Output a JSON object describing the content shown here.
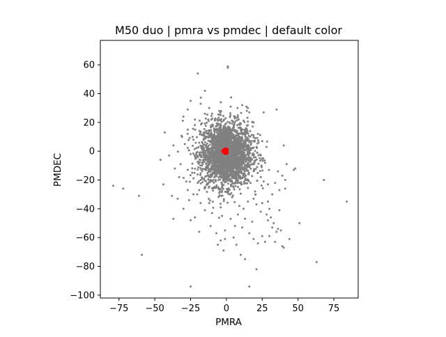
{
  "chart_data": {
    "type": "scatter",
    "title": "M50 duo | pmra vs pmdec | default color",
    "xlabel": "PMRA",
    "ylabel": "PMDEC",
    "xlim": [
      -88,
      92
    ],
    "ylim": [
      -102,
      77
    ],
    "x_ticks": [
      -75,
      -50,
      -25,
      0,
      25,
      50,
      75
    ],
    "y_ticks": [
      -100,
      -80,
      -60,
      -40,
      -20,
      0,
      20,
      40,
      60
    ],
    "grid": false,
    "legend": "none",
    "series": [
      {
        "color": "#808080",
        "marker": "dot",
        "core_cluster": {
          "center": [
            0,
            -2
          ],
          "spread_x": 9,
          "spread_y": 11
        },
        "points": [
          [
            -20,
            54
          ],
          [
            -15,
            42
          ],
          [
            1,
            58
          ],
          [
            1,
            59
          ],
          [
            -25,
            35
          ],
          [
            -18,
            33
          ],
          [
            -12,
            30
          ],
          [
            -27,
            29
          ],
          [
            16,
            27
          ],
          [
            26,
            27
          ],
          [
            35,
            29
          ],
          [
            -30,
            24
          ],
          [
            -22,
            22
          ],
          [
            -8,
            22
          ],
          [
            8,
            25
          ],
          [
            -43,
            13
          ],
          [
            -37,
            4
          ],
          [
            -40,
            -3
          ],
          [
            -46,
            -6
          ],
          [
            -32,
            -9
          ],
          [
            -36,
            -12
          ],
          [
            -27,
            -13
          ],
          [
            -33,
            -18
          ],
          [
            -28,
            -21
          ],
          [
            -44,
            -23
          ],
          [
            -38,
            -31
          ],
          [
            -34,
            -33
          ],
          [
            -26,
            -34
          ],
          [
            -23,
            -30
          ],
          [
            -19,
            -27
          ],
          [
            -25,
            -48
          ],
          [
            -18,
            -36
          ],
          [
            -12,
            -36
          ],
          [
            -37,
            -47
          ],
          [
            -15,
            -41
          ],
          [
            -10,
            -43
          ],
          [
            -3,
            -45
          ],
          [
            3,
            -47
          ],
          [
            8,
            -44
          ],
          [
            13,
            -47
          ],
          [
            9,
            -38
          ],
          [
            -11,
            -52
          ],
          [
            -7,
            -57
          ],
          [
            -1,
            -55
          ],
          [
            6,
            -52
          ],
          [
            11,
            -53
          ],
          [
            -19,
            -56
          ],
          [
            -22,
            -46
          ],
          [
            -27,
            -27
          ],
          [
            -5,
            -29
          ],
          [
            4,
            -32
          ],
          [
            12,
            -40
          ],
          [
            -4,
            -39
          ],
          [
            15,
            -35
          ],
          [
            19,
            -33
          ],
          [
            21,
            -37
          ],
          [
            25,
            -36
          ],
          [
            29,
            -35
          ],
          [
            24,
            -42
          ],
          [
            28,
            -44
          ],
          [
            30,
            -40
          ],
          [
            37,
            -41
          ],
          [
            33,
            -50
          ],
          [
            36,
            -54
          ],
          [
            38,
            -55
          ],
          [
            29,
            -48
          ],
          [
            32,
            -53
          ],
          [
            35,
            -56
          ],
          [
            25,
            -59
          ],
          [
            27,
            -63
          ],
          [
            30,
            -59
          ],
          [
            39,
            -66
          ],
          [
            34,
            -63
          ],
          [
            44,
            -61
          ],
          [
            40,
            -67
          ],
          [
            10,
            -72
          ],
          [
            13,
            -75
          ],
          [
            21,
            -82
          ],
          [
            16,
            -94
          ],
          [
            -25,
            -94
          ],
          [
            -59,
            -72
          ],
          [
            -79,
            -24
          ],
          [
            -72,
            -26
          ],
          [
            -61,
            -31
          ],
          [
            -4,
            -62
          ],
          [
            -1,
            -61
          ],
          [
            -6,
            -65
          ],
          [
            16,
            -57
          ],
          [
            19,
            -61
          ],
          [
            22,
            -64
          ],
          [
            40,
            4
          ],
          [
            42,
            -9
          ],
          [
            36,
            -14
          ],
          [
            41,
            -20
          ],
          [
            47,
            -13
          ],
          [
            48,
            -12
          ],
          [
            39,
            -17
          ],
          [
            34,
            -22
          ],
          [
            37,
            -27
          ],
          [
            32,
            -30
          ],
          [
            41,
            -26
          ],
          [
            51,
            -50
          ],
          [
            63,
            -77
          ],
          [
            68,
            -20
          ],
          [
            84,
            -35
          ],
          [
            22,
            12
          ],
          [
            25,
            7
          ],
          [
            28,
            3
          ],
          [
            24,
            -3
          ],
          [
            27,
            -8
          ],
          [
            24,
            -18
          ],
          [
            26,
            -21
          ],
          [
            29,
            -23
          ],
          [
            -29,
            5
          ],
          [
            -31,
            10
          ],
          [
            -27,
            15
          ],
          [
            -25,
            -2
          ],
          [
            -23,
            8
          ],
          [
            19,
            20
          ],
          [
            14,
            31
          ],
          [
            15,
            30
          ],
          [
            -5,
            28
          ],
          [
            3,
            31
          ],
          [
            11,
            32
          ],
          [
            -10,
            26
          ],
          [
            -15,
            26
          ],
          [
            20,
            -28
          ],
          [
            -20,
            -22
          ],
          [
            5,
            -60
          ],
          [
            -2,
            -69
          ],
          [
            7,
            -65
          ],
          [
            -30,
            -40
          ],
          [
            18,
            -49
          ],
          [
            31,
            -46
          ]
        ]
      },
      {
        "color": "#ff0000",
        "marker": "dot",
        "points": [
          [
            -1,
            0
          ],
          [
            -1,
            1
          ],
          [
            0,
            0
          ],
          [
            -1,
            -1
          ],
          [
            0,
            1
          ],
          [
            -2,
            0
          ],
          [
            0,
            -1
          ],
          [
            -1,
            0.5
          ]
        ]
      }
    ]
  }
}
